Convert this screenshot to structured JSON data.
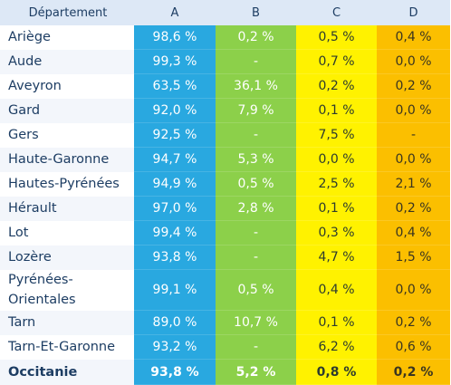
{
  "headers": {
    "department": "Département",
    "a": "A",
    "b": "B",
    "c": "C",
    "d": "D"
  },
  "colors": {
    "a": "#29a8e0",
    "b": "#8cd04a",
    "c": "#fff200",
    "d": "#fbbf00",
    "header_bg": "#dde8f6",
    "label_text": "#1d3d63"
  },
  "rows": [
    {
      "name": "Ariège",
      "a": "98,6 %",
      "b": "0,2 %",
      "c": "0,5 %",
      "d": "0,4 %"
    },
    {
      "name": "Aude",
      "a": "99,3 %",
      "b": "-",
      "c": "0,7 %",
      "d": "0,0 %"
    },
    {
      "name": "Aveyron",
      "a": "63,5 %",
      "b": "36,1 %",
      "c": "0,2 %",
      "d": "0,2 %"
    },
    {
      "name": "Gard",
      "a": "92,0 %",
      "b": "7,9 %",
      "c": "0,1 %",
      "d": "0,0 %"
    },
    {
      "name": "Gers",
      "a": "92,5 %",
      "b": "-",
      "c": "7,5 %",
      "d": "-"
    },
    {
      "name": "Haute-Garonne",
      "a": "94,7 %",
      "b": "5,3 %",
      "c": "0,0 %",
      "d": "0,0 %"
    },
    {
      "name": "Hautes-Pyrénées",
      "a": "94,9 %",
      "b": "0,5 %",
      "c": "2,5 %",
      "d": "2,1 %"
    },
    {
      "name": "Hérault",
      "a": "97,0 %",
      "b": "2,8 %",
      "c": "0,1 %",
      "d": "0,2 %"
    },
    {
      "name": "Lot",
      "a": "99,4 %",
      "b": "-",
      "c": "0,3 %",
      "d": "0,4 %"
    },
    {
      "name": "Lozère",
      "a": "93,8 %",
      "b": "-",
      "c": "4,7 %",
      "d": "1,5 %"
    },
    {
      "name_line1": "Pyrénées-",
      "name_line2": "Orientales",
      "a": "99,1 %",
      "b": "0,5 %",
      "c": "0,4 %",
      "d": "0,0 %"
    },
    {
      "name": "Tarn",
      "a": "89,0 %",
      "b": "10,7 %",
      "c": "0,1 %",
      "d": "0,2 %"
    },
    {
      "name": "Tarn-Et-Garonne",
      "a": "93,2 %",
      "b": "-",
      "c": "6,2 %",
      "d": "0,6 %"
    }
  ],
  "total": {
    "name": "Occitanie",
    "a": "93,8 %",
    "b": "5,2 %",
    "c": "0,8 %",
    "d": "0,2 %"
  }
}
